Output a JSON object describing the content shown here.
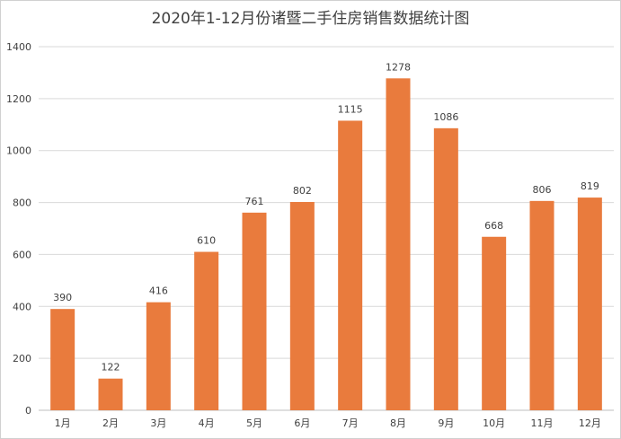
{
  "chart_data": {
    "type": "bar",
    "title": "2020年1-12月份诸暨二手住房销售数据统计图",
    "categories": [
      "1月",
      "2月",
      "3月",
      "4月",
      "5月",
      "6月",
      "7月",
      "8月",
      "9月",
      "10月",
      "11月",
      "12月"
    ],
    "values": [
      390,
      122,
      416,
      610,
      761,
      802,
      1115,
      1278,
      1086,
      668,
      806,
      819
    ],
    "yticks": [
      "0",
      "200",
      "400",
      "600",
      "800",
      "1000",
      "1200",
      "1400"
    ],
    "ylim": [
      0,
      1400
    ],
    "grid": true,
    "legend": "none",
    "bar_color": "#E97B3D"
  }
}
